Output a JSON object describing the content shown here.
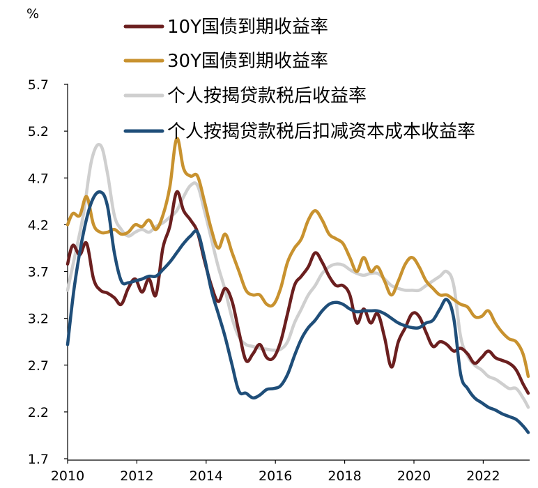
{
  "chart_data": {
    "type": "line",
    "unit_label": "%",
    "ylim": [
      1.7,
      5.7
    ],
    "yticks": [
      "1.7",
      "2.2",
      "2.7",
      "3.2",
      "3.7",
      "4.2",
      "4.7",
      "5.2",
      "5.7"
    ],
    "xlim": [
      2010,
      2023.3
    ],
    "xticks": [
      "2010",
      "2012",
      "2014",
      "2016",
      "2018",
      "2020",
      "2022"
    ],
    "grid": false,
    "legend_position": "top",
    "series": [
      {
        "name": "10Y国债到期收益率",
        "color": "#6b1f1f",
        "points": [
          [
            2010.0,
            3.78
          ],
          [
            2010.15,
            3.98
          ],
          [
            2010.35,
            3.88
          ],
          [
            2010.55,
            4.0
          ],
          [
            2010.75,
            3.62
          ],
          [
            2010.95,
            3.5
          ],
          [
            2011.15,
            3.47
          ],
          [
            2011.35,
            3.42
          ],
          [
            2011.55,
            3.35
          ],
          [
            2011.75,
            3.52
          ],
          [
            2011.95,
            3.62
          ],
          [
            2012.15,
            3.48
          ],
          [
            2012.35,
            3.62
          ],
          [
            2012.55,
            3.45
          ],
          [
            2012.75,
            3.95
          ],
          [
            2012.95,
            4.18
          ],
          [
            2013.15,
            4.55
          ],
          [
            2013.35,
            4.35
          ],
          [
            2013.55,
            4.25
          ],
          [
            2013.75,
            4.12
          ],
          [
            2013.95,
            3.82
          ],
          [
            2014.15,
            3.55
          ],
          [
            2014.35,
            3.38
          ],
          [
            2014.55,
            3.52
          ],
          [
            2014.75,
            3.38
          ],
          [
            2014.95,
            3.05
          ],
          [
            2015.15,
            2.75
          ],
          [
            2015.35,
            2.82
          ],
          [
            2015.55,
            2.92
          ],
          [
            2015.75,
            2.78
          ],
          [
            2015.95,
            2.78
          ],
          [
            2016.15,
            2.95
          ],
          [
            2016.35,
            3.25
          ],
          [
            2016.55,
            3.55
          ],
          [
            2016.75,
            3.65
          ],
          [
            2016.95,
            3.75
          ],
          [
            2017.15,
            3.9
          ],
          [
            2017.35,
            3.8
          ],
          [
            2017.55,
            3.65
          ],
          [
            2017.75,
            3.55
          ],
          [
            2017.95,
            3.55
          ],
          [
            2018.15,
            3.45
          ],
          [
            2018.35,
            3.15
          ],
          [
            2018.55,
            3.3
          ],
          [
            2018.75,
            3.15
          ],
          [
            2018.95,
            3.25
          ],
          [
            2019.15,
            3.0
          ],
          [
            2019.35,
            2.68
          ],
          [
            2019.55,
            2.95
          ],
          [
            2019.75,
            3.1
          ],
          [
            2019.95,
            3.25
          ],
          [
            2020.15,
            3.22
          ],
          [
            2020.35,
            3.05
          ],
          [
            2020.55,
            2.9
          ],
          [
            2020.75,
            2.95
          ],
          [
            2020.95,
            2.92
          ],
          [
            2021.15,
            2.85
          ],
          [
            2021.35,
            2.88
          ],
          [
            2021.55,
            2.82
          ],
          [
            2021.75,
            2.72
          ],
          [
            2021.95,
            2.78
          ],
          [
            2022.15,
            2.85
          ],
          [
            2022.35,
            2.78
          ],
          [
            2022.55,
            2.75
          ],
          [
            2022.75,
            2.72
          ],
          [
            2022.95,
            2.65
          ],
          [
            2023.15,
            2.5
          ],
          [
            2023.3,
            2.4
          ]
        ]
      },
      {
        "name": "30Y国债到期收益率",
        "color": "#c8922f",
        "points": [
          [
            2010.0,
            4.2
          ],
          [
            2010.15,
            4.32
          ],
          [
            2010.35,
            4.3
          ],
          [
            2010.55,
            4.5
          ],
          [
            2010.75,
            4.2
          ],
          [
            2010.95,
            4.12
          ],
          [
            2011.15,
            4.12
          ],
          [
            2011.35,
            4.15
          ],
          [
            2011.55,
            4.1
          ],
          [
            2011.75,
            4.12
          ],
          [
            2011.95,
            4.2
          ],
          [
            2012.15,
            4.18
          ],
          [
            2012.35,
            4.25
          ],
          [
            2012.55,
            4.15
          ],
          [
            2012.75,
            4.3
          ],
          [
            2012.95,
            4.6
          ],
          [
            2013.15,
            5.12
          ],
          [
            2013.35,
            4.8
          ],
          [
            2013.55,
            4.72
          ],
          [
            2013.75,
            4.72
          ],
          [
            2013.95,
            4.45
          ],
          [
            2014.15,
            4.15
          ],
          [
            2014.35,
            3.95
          ],
          [
            2014.55,
            4.1
          ],
          [
            2014.75,
            3.9
          ],
          [
            2014.95,
            3.7
          ],
          [
            2015.15,
            3.5
          ],
          [
            2015.35,
            3.45
          ],
          [
            2015.55,
            3.45
          ],
          [
            2015.75,
            3.35
          ],
          [
            2015.95,
            3.35
          ],
          [
            2016.15,
            3.52
          ],
          [
            2016.35,
            3.8
          ],
          [
            2016.55,
            3.95
          ],
          [
            2016.75,
            4.05
          ],
          [
            2016.95,
            4.25
          ],
          [
            2017.15,
            4.35
          ],
          [
            2017.35,
            4.25
          ],
          [
            2017.55,
            4.1
          ],
          [
            2017.75,
            4.05
          ],
          [
            2017.95,
            4.0
          ],
          [
            2018.15,
            3.85
          ],
          [
            2018.35,
            3.7
          ],
          [
            2018.55,
            3.85
          ],
          [
            2018.75,
            3.7
          ],
          [
            2018.95,
            3.75
          ],
          [
            2019.15,
            3.6
          ],
          [
            2019.35,
            3.45
          ],
          [
            2019.55,
            3.6
          ],
          [
            2019.75,
            3.78
          ],
          [
            2019.95,
            3.85
          ],
          [
            2020.15,
            3.75
          ],
          [
            2020.35,
            3.6
          ],
          [
            2020.55,
            3.52
          ],
          [
            2020.75,
            3.45
          ],
          [
            2020.95,
            3.45
          ],
          [
            2021.15,
            3.4
          ],
          [
            2021.35,
            3.35
          ],
          [
            2021.55,
            3.32
          ],
          [
            2021.75,
            3.22
          ],
          [
            2021.95,
            3.22
          ],
          [
            2022.15,
            3.28
          ],
          [
            2022.35,
            3.15
          ],
          [
            2022.55,
            3.05
          ],
          [
            2022.75,
            2.98
          ],
          [
            2022.95,
            2.95
          ],
          [
            2023.15,
            2.82
          ],
          [
            2023.3,
            2.58
          ]
        ]
      },
      {
        "name": "个人按揭贷款税后收益率",
        "color": "#cfcfcf",
        "points": [
          [
            2010.0,
            3.5
          ],
          [
            2010.2,
            3.85
          ],
          [
            2010.45,
            4.3
          ],
          [
            2010.7,
            4.9
          ],
          [
            2010.95,
            5.05
          ],
          [
            2011.15,
            4.75
          ],
          [
            2011.35,
            4.3
          ],
          [
            2011.55,
            4.15
          ],
          [
            2011.75,
            4.08
          ],
          [
            2011.95,
            4.12
          ],
          [
            2012.15,
            4.15
          ],
          [
            2012.35,
            4.12
          ],
          [
            2012.55,
            4.18
          ],
          [
            2012.75,
            4.22
          ],
          [
            2012.95,
            4.28
          ],
          [
            2013.15,
            4.35
          ],
          [
            2013.35,
            4.5
          ],
          [
            2013.55,
            4.62
          ],
          [
            2013.75,
            4.62
          ],
          [
            2013.95,
            4.35
          ],
          [
            2014.15,
            4.05
          ],
          [
            2014.35,
            3.75
          ],
          [
            2014.55,
            3.5
          ],
          [
            2014.75,
            3.2
          ],
          [
            2014.95,
            3.0
          ],
          [
            2015.15,
            2.92
          ],
          [
            2015.35,
            2.9
          ],
          [
            2015.55,
            2.88
          ],
          [
            2015.75,
            2.87
          ],
          [
            2015.95,
            2.86
          ],
          [
            2016.15,
            2.87
          ],
          [
            2016.35,
            2.95
          ],
          [
            2016.55,
            3.15
          ],
          [
            2016.75,
            3.3
          ],
          [
            2016.95,
            3.45
          ],
          [
            2017.15,
            3.55
          ],
          [
            2017.35,
            3.68
          ],
          [
            2017.55,
            3.75
          ],
          [
            2017.75,
            3.78
          ],
          [
            2017.95,
            3.77
          ],
          [
            2018.15,
            3.72
          ],
          [
            2018.35,
            3.68
          ],
          [
            2018.55,
            3.66
          ],
          [
            2018.75,
            3.68
          ],
          [
            2018.95,
            3.68
          ],
          [
            2019.15,
            3.62
          ],
          [
            2019.35,
            3.55
          ],
          [
            2019.55,
            3.52
          ],
          [
            2019.75,
            3.5
          ],
          [
            2019.95,
            3.5
          ],
          [
            2020.15,
            3.5
          ],
          [
            2020.35,
            3.55
          ],
          [
            2020.55,
            3.6
          ],
          [
            2020.75,
            3.65
          ],
          [
            2020.95,
            3.7
          ],
          [
            2021.15,
            3.55
          ],
          [
            2021.35,
            3.0
          ],
          [
            2021.55,
            2.8
          ],
          [
            2021.75,
            2.7
          ],
          [
            2021.95,
            2.65
          ],
          [
            2022.15,
            2.58
          ],
          [
            2022.35,
            2.55
          ],
          [
            2022.55,
            2.5
          ],
          [
            2022.75,
            2.45
          ],
          [
            2022.95,
            2.45
          ],
          [
            2023.15,
            2.35
          ],
          [
            2023.3,
            2.25
          ]
        ]
      },
      {
        "name": "个人按揭贷款税后扣减资本成本收益率",
        "color": "#1f4e79",
        "points": [
          [
            2010.0,
            2.92
          ],
          [
            2010.2,
            3.55
          ],
          [
            2010.45,
            4.1
          ],
          [
            2010.7,
            4.45
          ],
          [
            2010.95,
            4.55
          ],
          [
            2011.15,
            4.4
          ],
          [
            2011.35,
            3.9
          ],
          [
            2011.55,
            3.6
          ],
          [
            2011.75,
            3.58
          ],
          [
            2011.95,
            3.6
          ],
          [
            2012.15,
            3.62
          ],
          [
            2012.35,
            3.65
          ],
          [
            2012.55,
            3.65
          ],
          [
            2012.75,
            3.72
          ],
          [
            2012.95,
            3.8
          ],
          [
            2013.15,
            3.9
          ],
          [
            2013.35,
            4.0
          ],
          [
            2013.55,
            4.08
          ],
          [
            2013.75,
            4.12
          ],
          [
            2013.95,
            3.85
          ],
          [
            2014.15,
            3.5
          ],
          [
            2014.35,
            3.25
          ],
          [
            2014.55,
            3.0
          ],
          [
            2014.75,
            2.7
          ],
          [
            2014.95,
            2.42
          ],
          [
            2015.15,
            2.4
          ],
          [
            2015.35,
            2.35
          ],
          [
            2015.55,
            2.38
          ],
          [
            2015.75,
            2.44
          ],
          [
            2015.95,
            2.45
          ],
          [
            2016.15,
            2.48
          ],
          [
            2016.35,
            2.6
          ],
          [
            2016.55,
            2.8
          ],
          [
            2016.75,
            2.98
          ],
          [
            2016.95,
            3.1
          ],
          [
            2017.15,
            3.18
          ],
          [
            2017.35,
            3.28
          ],
          [
            2017.55,
            3.35
          ],
          [
            2017.75,
            3.37
          ],
          [
            2017.95,
            3.35
          ],
          [
            2018.15,
            3.3
          ],
          [
            2018.35,
            3.27
          ],
          [
            2018.55,
            3.28
          ],
          [
            2018.75,
            3.28
          ],
          [
            2018.95,
            3.28
          ],
          [
            2019.15,
            3.25
          ],
          [
            2019.35,
            3.2
          ],
          [
            2019.55,
            3.15
          ],
          [
            2019.75,
            3.12
          ],
          [
            2019.95,
            3.1
          ],
          [
            2020.15,
            3.1
          ],
          [
            2020.35,
            3.15
          ],
          [
            2020.55,
            3.18
          ],
          [
            2020.75,
            3.3
          ],
          [
            2020.95,
            3.4
          ],
          [
            2021.15,
            3.2
          ],
          [
            2021.35,
            2.6
          ],
          [
            2021.55,
            2.45
          ],
          [
            2021.75,
            2.35
          ],
          [
            2021.95,
            2.3
          ],
          [
            2022.15,
            2.25
          ],
          [
            2022.35,
            2.22
          ],
          [
            2022.55,
            2.18
          ],
          [
            2022.75,
            2.15
          ],
          [
            2022.95,
            2.12
          ],
          [
            2023.15,
            2.05
          ],
          [
            2023.3,
            1.98
          ]
        ]
      }
    ]
  }
}
